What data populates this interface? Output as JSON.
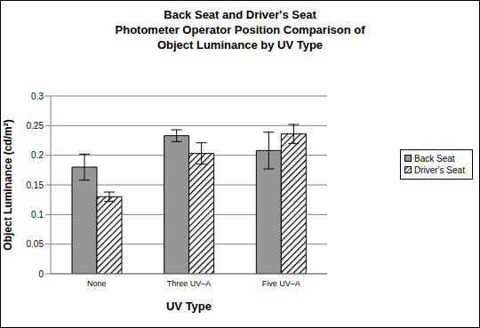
{
  "chart_data": {
    "type": "bar",
    "title": "Back Seat and Driver's Seat\nPhotometer Operator Position Comparison of\nObject Luminance by UV Type",
    "x_label": "UV Type",
    "y_label": "Object Luminance (cd/m²)",
    "categories": [
      "None",
      "Three UV–A",
      "Five UV–A"
    ],
    "series": [
      {
        "name": "Back Seat",
        "color": "#969696",
        "values": [
          0.18,
          0.233,
          0.208
        ],
        "errors": [
          0.022,
          0.01,
          0.031
        ]
      },
      {
        "name": "Driver's Seat",
        "color": "#000000",
        "values": [
          0.13,
          0.203,
          0.236
        ],
        "errors": [
          0.008,
          0.018,
          0.016
        ]
      }
    ],
    "ylim": [
      0,
      0.3
    ],
    "yticks": [
      0,
      0.05,
      0.1,
      0.15,
      0.2,
      0.25,
      0.3
    ],
    "grid": true,
    "legend": "right"
  }
}
